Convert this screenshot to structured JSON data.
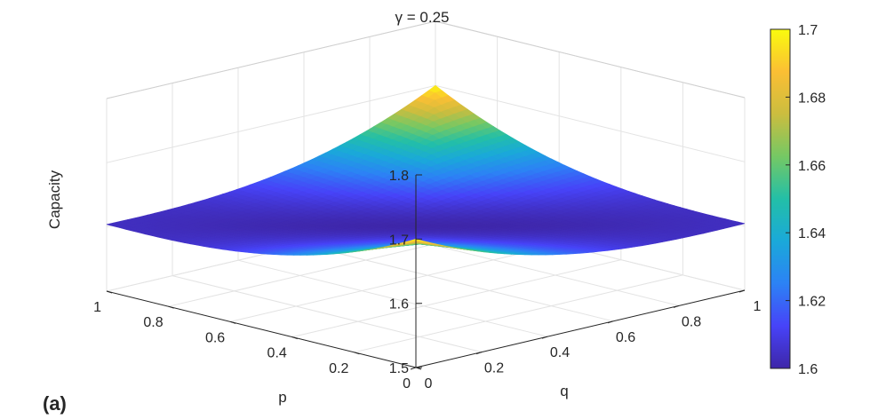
{
  "chart_data": {
    "type": "surface",
    "title": "γ = 0.25",
    "xlabel": "p",
    "ylabel": "q",
    "zlabel": "Capacity",
    "panel_label": "(a)",
    "xlim": [
      0,
      1
    ],
    "ylim": [
      0,
      1
    ],
    "zlim": [
      1.5,
      1.8
    ],
    "x_ticks": [
      "0",
      "0.2",
      "0.4",
      "0.6",
      "0.8",
      "1"
    ],
    "y_ticks": [
      "0",
      "0.2",
      "0.4",
      "0.6",
      "0.8",
      "1"
    ],
    "z_ticks": [
      "1.5",
      "1.6",
      "1.7",
      "1.8"
    ],
    "grid": true,
    "colorbar": {
      "limits": [
        1.6,
        1.7
      ],
      "ticks": [
        "1.6",
        "1.62",
        "1.64",
        "1.66",
        "1.68",
        "1.7"
      ],
      "colormap": [
        "#3e26a8",
        "#4743f8",
        "#2c82f5",
        "#1aa9d9",
        "#23bfa7",
        "#75c864",
        "#cbbd3f",
        "#fbbf34",
        "#f9fb0e"
      ]
    },
    "corner_values": [
      {
        "p": 0,
        "q": 0,
        "capacity": 1.7
      },
      {
        "p": 1,
        "q": 0,
        "capacity": 1.604
      },
      {
        "p": 0,
        "q": 1,
        "capacity": 1.604
      },
      {
        "p": 1,
        "q": 1,
        "capacity": 1.7
      }
    ],
    "min_capacity": 1.6
  }
}
